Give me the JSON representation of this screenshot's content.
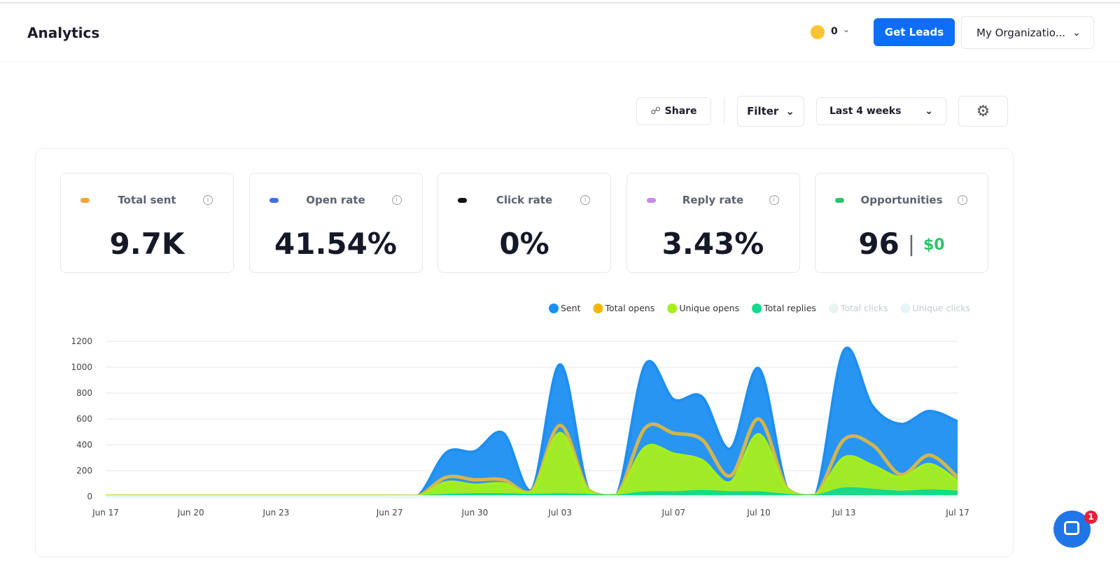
{
  "header": {
    "title": "Analytics",
    "credits": "0",
    "button": "Get Leads",
    "org": "My Organizatio..."
  },
  "toolbar": {
    "share": "Share",
    "filter": "Filter",
    "range": "Last 4 weeks"
  },
  "stats": [
    {
      "label": "Total sent",
      "value": "9.7K",
      "color": "#f0a443"
    },
    {
      "label": "Open rate",
      "value": "41.54%",
      "color": "#3f6fe6"
    },
    {
      "label": "Click rate",
      "value": "0%",
      "color": "#111111"
    },
    {
      "label": "Reply rate",
      "value": "3.43%",
      "color": "#c58be6"
    },
    {
      "label": "Opportunities",
      "value": "96",
      "extra": "$0",
      "color": "#2fc26a"
    }
  ],
  "chart_data": {
    "type": "area",
    "categories": [
      "Jun 17",
      null,
      null,
      "Jun 20",
      null,
      null,
      "Jun 23",
      null,
      null,
      null,
      "Jun 27",
      null,
      null,
      "Jun 30",
      null,
      null,
      "Jul 03",
      null,
      null,
      null,
      "Jul 07",
      null,
      null,
      "Jul 10",
      null,
      null,
      "Jul 13",
      null,
      null,
      null,
      "Jul 17"
    ],
    "series": [
      {
        "name": "Sent",
        "color": "#1e8ff2",
        "values": [
          5,
          5,
          5,
          5,
          5,
          5,
          5,
          5,
          5,
          5,
          5,
          5,
          340,
          350,
          490,
          50,
          1020,
          50,
          10,
          1020,
          750,
          770,
          370,
          990,
          60,
          10,
          1130,
          700,
          560,
          660,
          580
        ]
      },
      {
        "name": "Total opens",
        "color": "#f5b800",
        "line_color": "#d2b64c",
        "values": [
          3,
          3,
          3,
          3,
          3,
          3,
          3,
          3,
          3,
          3,
          3,
          3,
          150,
          130,
          130,
          40,
          550,
          50,
          10,
          530,
          490,
          440,
          160,
          600,
          60,
          10,
          440,
          400,
          170,
          320,
          150
        ]
      },
      {
        "name": "Unique opens",
        "color": "#a6ee1c",
        "values": [
          2,
          2,
          2,
          2,
          2,
          2,
          2,
          2,
          2,
          2,
          2,
          2,
          110,
          90,
          100,
          30,
          490,
          40,
          10,
          380,
          330,
          280,
          110,
          480,
          50,
          10,
          300,
          240,
          150,
          250,
          120
        ]
      },
      {
        "name": "Total replies",
        "color": "#13d98c",
        "values": [
          0,
          0,
          0,
          0,
          0,
          0,
          0,
          0,
          0,
          0,
          0,
          0,
          10,
          15,
          15,
          10,
          15,
          10,
          5,
          30,
          30,
          40,
          30,
          30,
          10,
          5,
          60,
          50,
          35,
          45,
          35
        ]
      },
      {
        "name": "Total clicks",
        "color": "#e8f4f0",
        "hidden": true,
        "values": [
          0,
          0,
          0,
          0,
          0,
          0,
          0,
          0,
          0,
          0,
          0,
          0,
          0,
          0,
          0,
          0,
          0,
          0,
          0,
          0,
          0,
          0,
          0,
          0,
          0,
          0,
          0,
          0,
          0,
          0,
          0
        ]
      },
      {
        "name": "Unique clicks",
        "color": "#e6f5f5",
        "hidden": true,
        "values": [
          0,
          0,
          0,
          0,
          0,
          0,
          0,
          0,
          0,
          0,
          0,
          0,
          0,
          0,
          0,
          0,
          0,
          0,
          0,
          0,
          0,
          0,
          0,
          0,
          0,
          0,
          0,
          0,
          0,
          0,
          0
        ]
      }
    ],
    "ylim": [
      0,
      1200
    ],
    "yticks": [
      0,
      200,
      400,
      600,
      800,
      1000,
      1200
    ],
    "grid": true
  },
  "chat": {
    "badge": "1"
  }
}
